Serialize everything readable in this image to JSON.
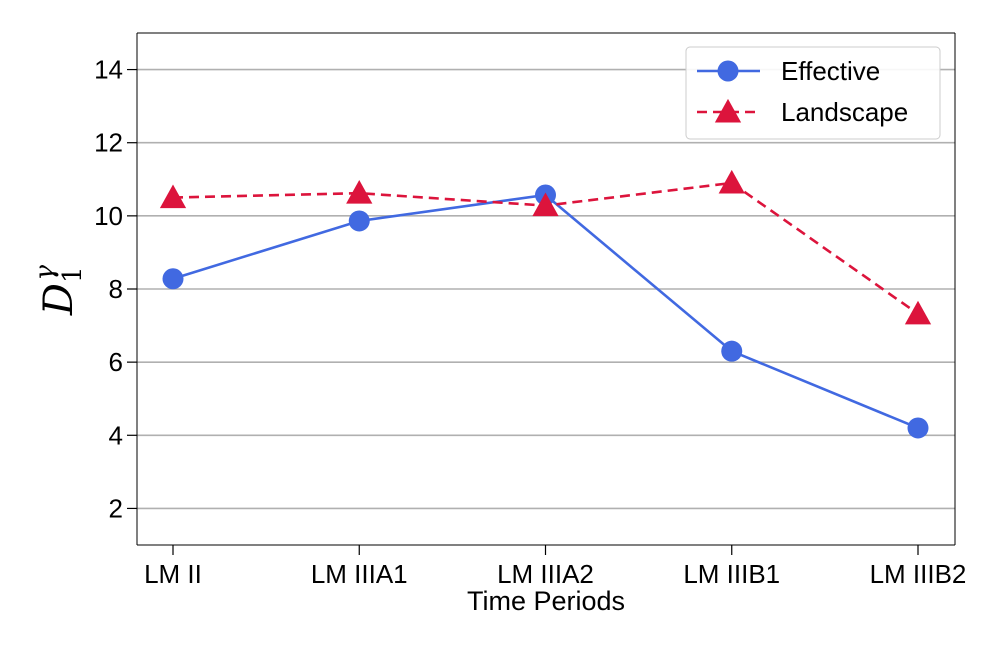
{
  "chart_data": {
    "type": "line",
    "categories": [
      "LM II",
      "LM IIIA1",
      "LM IIIA2",
      "LM IIIB1",
      "LM IIIB2"
    ],
    "series": [
      {
        "name": "Effective",
        "values": [
          8.28,
          9.86,
          10.57,
          6.3,
          4.2
        ],
        "color": "#4169e1",
        "marker": "circle",
        "line": "solid"
      },
      {
        "name": "Landscape",
        "values": [
          10.5,
          10.62,
          10.28,
          10.9,
          7.32
        ],
        "color": "#dc143c",
        "marker": "triangle",
        "line": "dashed"
      }
    ],
    "xlabel": "Time Periods",
    "ylabel": {
      "base": "D",
      "sup": "γ",
      "sub": "1"
    },
    "ylim": [
      1,
      15
    ],
    "yticks": [
      2,
      4,
      6,
      8,
      10,
      12,
      14
    ],
    "grid": "horizontal",
    "legend_position": "top-right"
  }
}
